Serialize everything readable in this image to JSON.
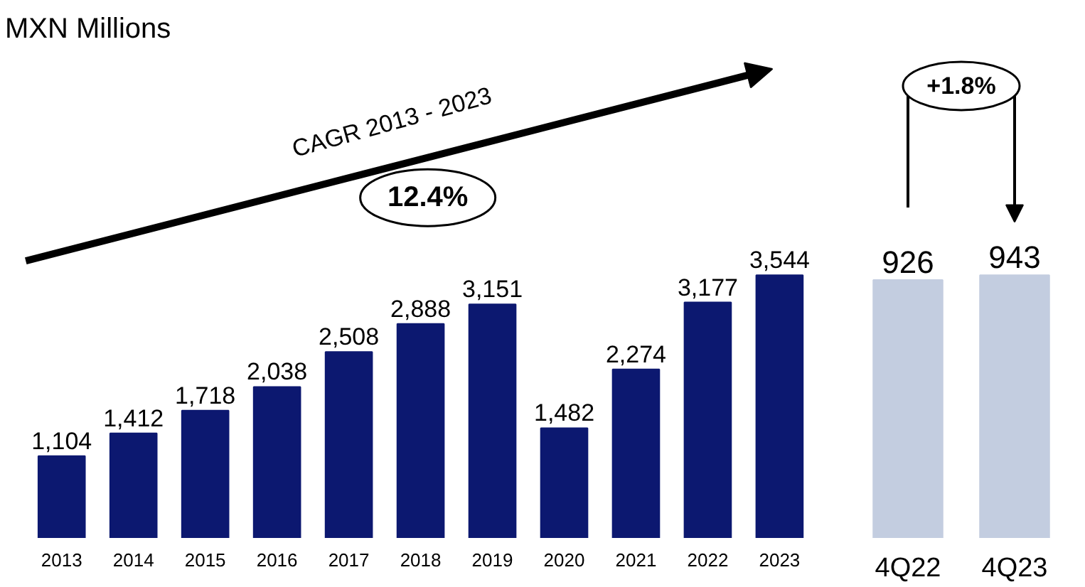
{
  "chart_data": [
    {
      "type": "bar",
      "title": "MXN Millions",
      "categories": [
        "2013",
        "2014",
        "2015",
        "2016",
        "2017",
        "2018",
        "2019",
        "2020",
        "2021",
        "2022",
        "2023"
      ],
      "values": [
        1104,
        1412,
        1718,
        2038,
        2508,
        2888,
        3151,
        1482,
        2274,
        3177,
        3544
      ],
      "color": "#0c1870",
      "value_labels": [
        "1,104",
        "1,412",
        "1,718",
        "2,038",
        "2,508",
        "2,888",
        "3,151",
        "1,482",
        "2,274",
        "3,177",
        "3,544"
      ],
      "annotations": [
        "CAGR 2013 - 2023",
        "12.4%"
      ]
    },
    {
      "type": "bar",
      "categories": [
        "4Q22",
        "4Q23"
      ],
      "values": [
        926,
        943
      ],
      "color": "#c3cde0",
      "data_labels": true,
      "annotations": [
        "+1.8%"
      ]
    }
  ]
}
